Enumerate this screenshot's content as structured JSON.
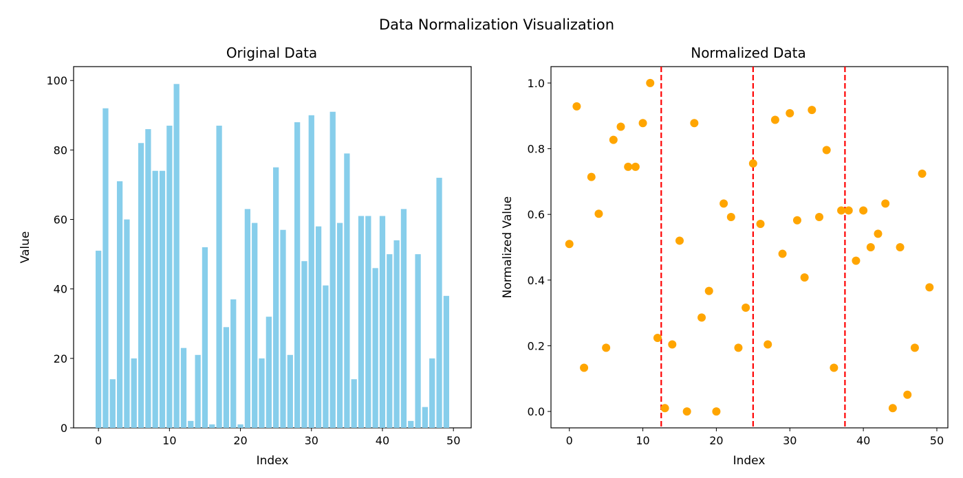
{
  "figure": {
    "title": "Data Normalization Visualization"
  },
  "chart_data": [
    {
      "type": "bar",
      "title": "Original Data",
      "xlabel": "Index",
      "ylabel": "Value",
      "color": "#87ceeb",
      "xlim": [
        -3.5,
        52.5
      ],
      "ylim": [
        0,
        104
      ],
      "xticks": [
        0,
        10,
        20,
        30,
        40,
        50
      ],
      "yticks": [
        0,
        20,
        40,
        60,
        80,
        100
      ],
      "x": [
        0,
        1,
        2,
        3,
        4,
        5,
        6,
        7,
        8,
        9,
        10,
        11,
        12,
        13,
        14,
        15,
        16,
        17,
        18,
        19,
        20,
        21,
        22,
        23,
        24,
        25,
        26,
        27,
        28,
        29,
        30,
        31,
        32,
        33,
        34,
        35,
        36,
        37,
        38,
        39,
        40,
        41,
        42,
        43,
        44,
        45,
        46,
        47,
        48,
        49
      ],
      "values": [
        51,
        92,
        14,
        71,
        60,
        20,
        82,
        86,
        74,
        74,
        87,
        99,
        23,
        2,
        21,
        52,
        1,
        87,
        29,
        37,
        1,
        63,
        59,
        20,
        32,
        75,
        57,
        21,
        88,
        48,
        90,
        58,
        41,
        91,
        59,
        79,
        14,
        61,
        61,
        46,
        61,
        50,
        54,
        63,
        2,
        50,
        6,
        20,
        72,
        38
      ]
    },
    {
      "type": "scatter",
      "title": "Normalized Data",
      "xlabel": "Index",
      "ylabel": "Normalized Value",
      "color": "#ffa500",
      "line_color": "#ff0000",
      "xlim": [
        -2.5,
        51.5
      ],
      "ylim": [
        -0.05,
        1.05
      ],
      "xticks": [
        0,
        10,
        20,
        30,
        40,
        50
      ],
      "yticks": [
        "0.0",
        "0.2",
        "0.4",
        "0.6",
        "0.8",
        "1.0"
      ],
      "vlines": [
        12.5,
        25,
        37.5
      ],
      "x": [
        0,
        1,
        2,
        3,
        4,
        5,
        6,
        7,
        8,
        9,
        10,
        11,
        12,
        13,
        14,
        15,
        16,
        17,
        18,
        19,
        20,
        21,
        22,
        23,
        24,
        25,
        26,
        27,
        28,
        29,
        30,
        31,
        32,
        33,
        34,
        35,
        36,
        37,
        38,
        39,
        40,
        41,
        42,
        43,
        44,
        45,
        46,
        47,
        48,
        49
      ],
      "values": [
        0.51,
        0.929,
        0.133,
        0.714,
        0.602,
        0.194,
        0.827,
        0.867,
        0.745,
        0.745,
        0.878,
        1.0,
        0.224,
        0.01,
        0.204,
        0.52,
        0.0,
        0.878,
        0.286,
        0.367,
        0.0,
        0.633,
        0.592,
        0.194,
        0.316,
        0.755,
        0.571,
        0.204,
        0.888,
        0.48,
        0.908,
        0.582,
        0.408,
        0.918,
        0.592,
        0.796,
        0.133,
        0.612,
        0.612,
        0.459,
        0.612,
        0.5,
        0.541,
        0.633,
        0.01,
        0.5,
        0.051,
        0.194,
        0.724,
        0.378
      ]
    }
  ]
}
